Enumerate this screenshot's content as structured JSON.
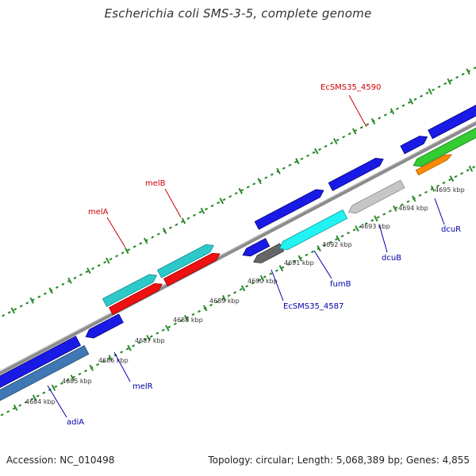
{
  "title": "Escherichia coli SMS-3-5, complete genome",
  "footer": {
    "accession": "Accession: NC_010498",
    "summary": "Topology: circular; Length: 5,068,389 bp; Genes: 4,855"
  },
  "colors": {
    "backbone": "#8c8c8c",
    "dots": "#2e8b2e",
    "forward_label": "#cc0000",
    "reverse_label": "#0000aa"
  },
  "ticks": [
    {
      "label": "4684 kbp"
    },
    {
      "label": "4685 kbp"
    },
    {
      "label": "4686 kbp"
    },
    {
      "label": "4687 kbp"
    },
    {
      "label": "4688 kbp"
    },
    {
      "label": "4689 kbp"
    },
    {
      "label": "4690 kbp"
    },
    {
      "label": "4691 kbp"
    },
    {
      "label": "4692 kbp"
    },
    {
      "label": "4693 kbp"
    },
    {
      "label": "4694 kbp"
    },
    {
      "label": "4695 kbp"
    }
  ],
  "gene_labels": [
    {
      "text": "EcSMS35_4590",
      "strand": "forward"
    },
    {
      "text": "melB",
      "strand": "forward"
    },
    {
      "text": "melA",
      "strand": "forward"
    },
    {
      "text": "dcuR",
      "strand": "reverse"
    },
    {
      "text": "dcuB",
      "strand": "reverse"
    },
    {
      "text": "fumB",
      "strand": "reverse"
    },
    {
      "text": "EcSMS35_4587",
      "strand": "reverse"
    },
    {
      "text": "melR",
      "strand": "reverse"
    },
    {
      "text": "adiA",
      "strand": "reverse"
    }
  ]
}
